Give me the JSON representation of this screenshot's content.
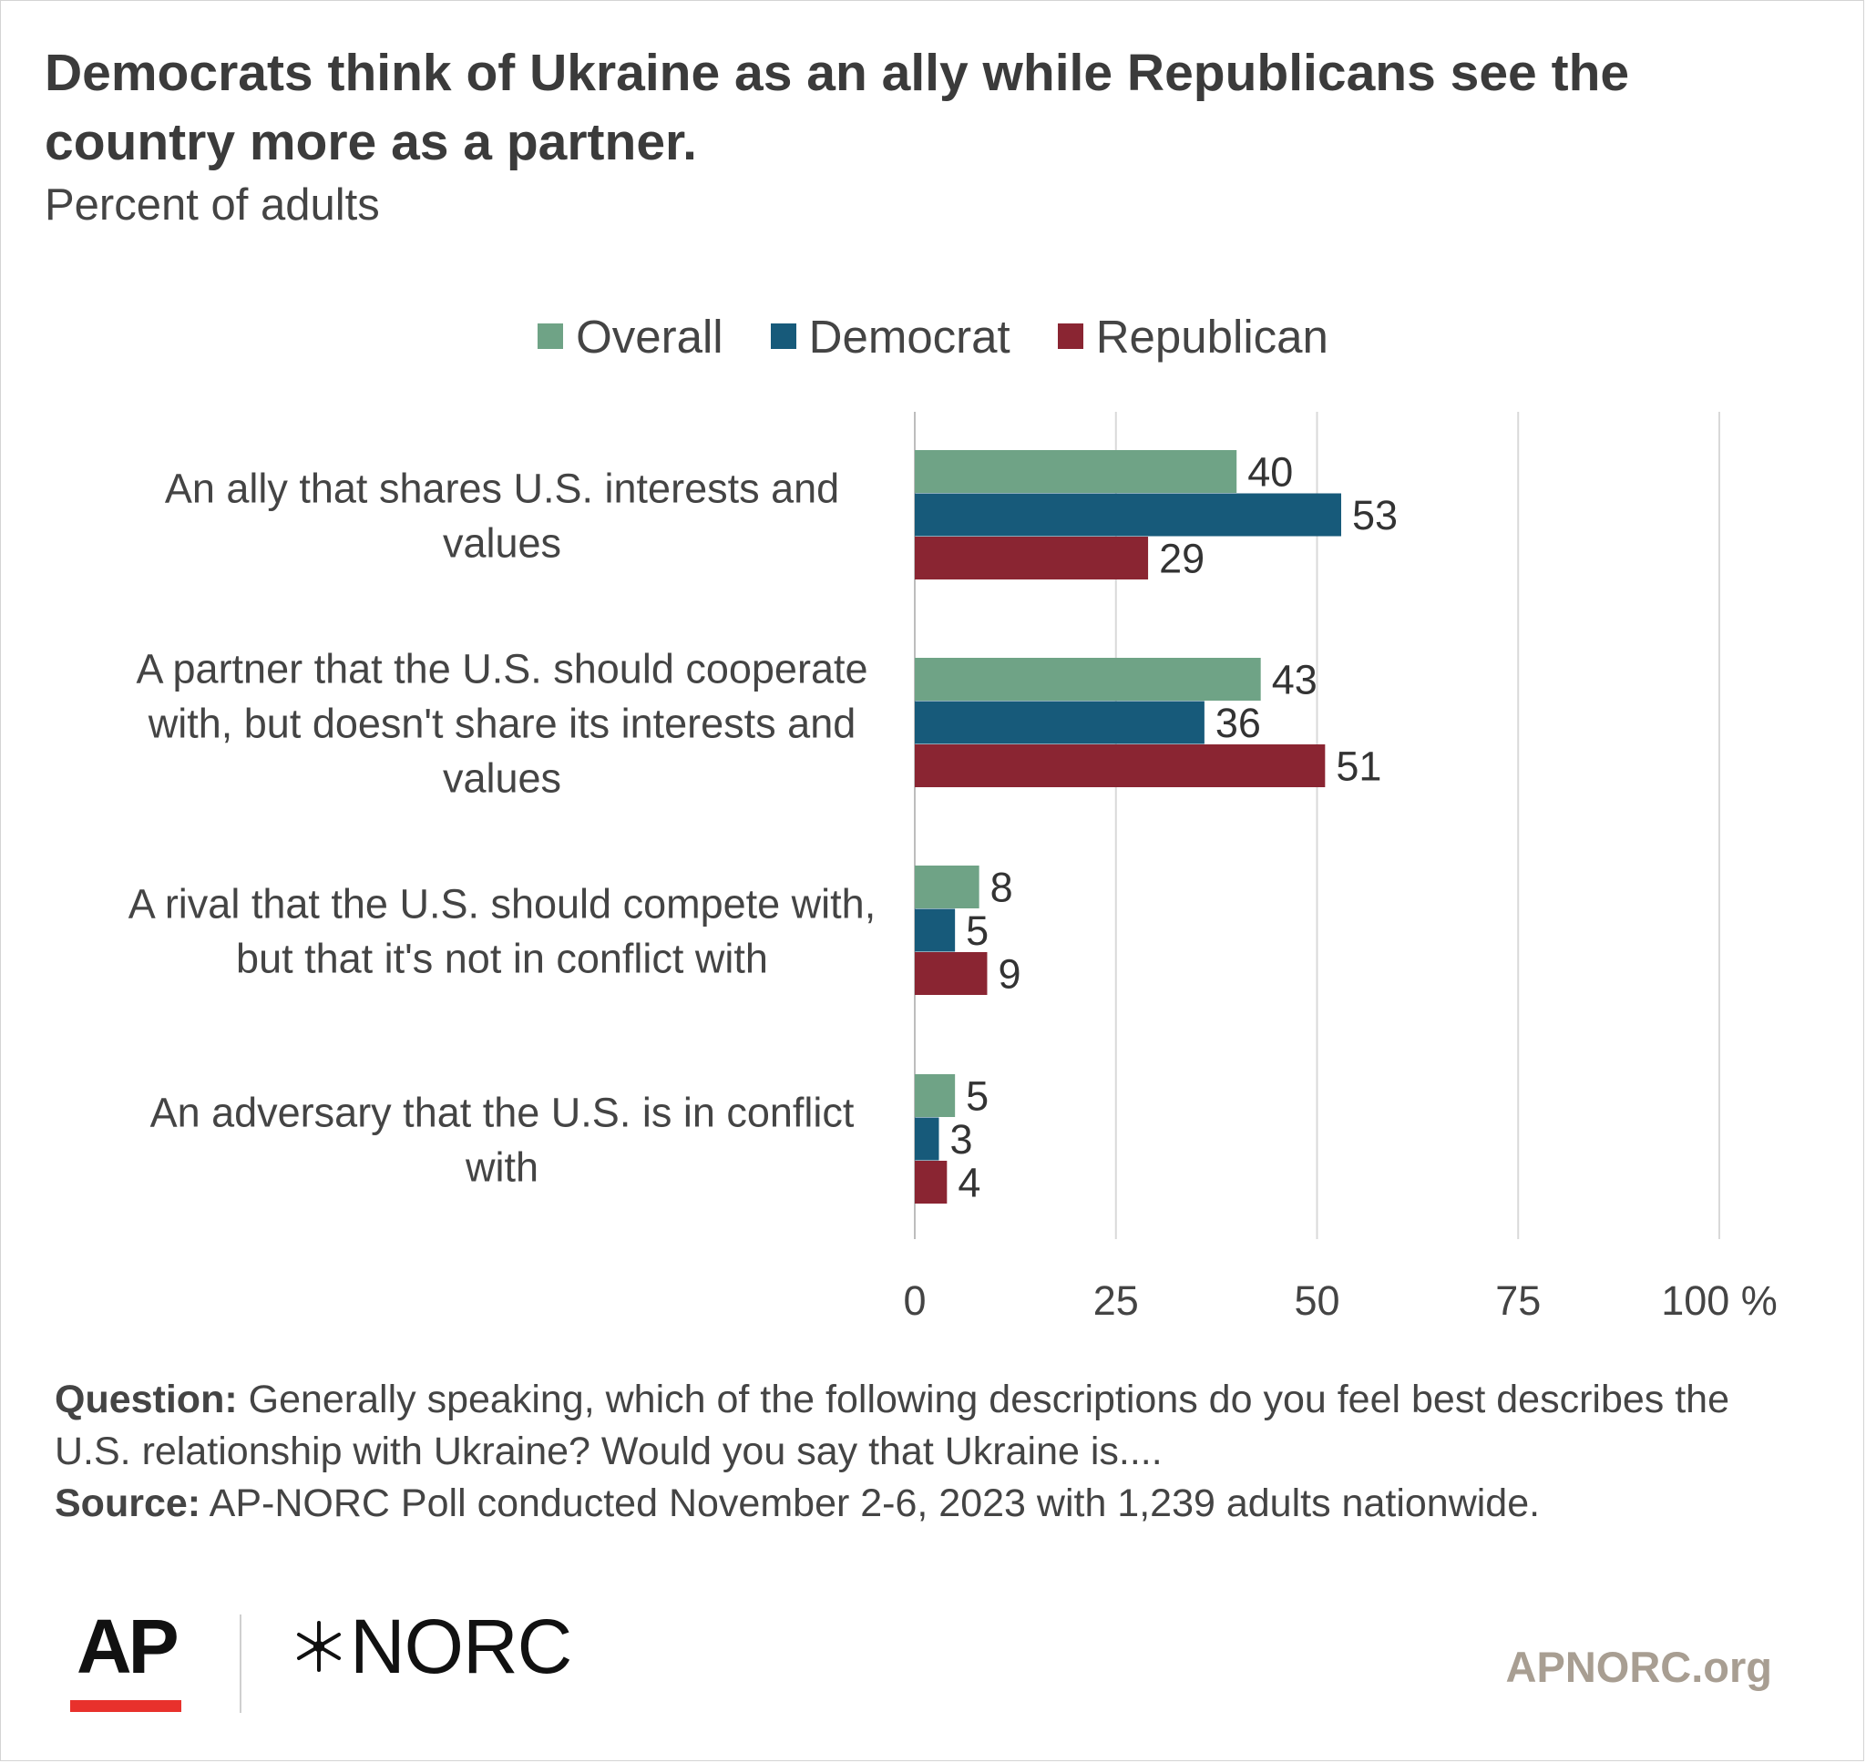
{
  "title": "Democrats think of Ukraine as an ally while Republicans see the country more as a partner.",
  "subtitle": "Percent of adults",
  "colors": {
    "overall": "#6fa386",
    "democrat": "#175a7a",
    "republican": "#8a2532",
    "grid": "#d9d9d9"
  },
  "chart_data": {
    "type": "bar",
    "orientation": "horizontal",
    "categories": [
      [
        "An ally that shares U.S. interests and",
        "values"
      ],
      [
        "A partner that the U.S. should cooperate",
        "with, but doesn't share its interests and",
        "values"
      ],
      [
        "A rival that the U.S. should compete with,",
        "but that it's not in conflict with"
      ],
      [
        "An adversary that the U.S. is in conflict",
        "with"
      ]
    ],
    "series": [
      {
        "name": "Overall",
        "values": [
          40,
          43,
          8,
          5
        ]
      },
      {
        "name": "Democrat",
        "values": [
          53,
          36,
          5,
          3
        ]
      },
      {
        "name": "Republican",
        "values": [
          29,
          51,
          9,
          4
        ]
      }
    ],
    "xlim": [
      0,
      100
    ],
    "xticks": [
      0,
      25,
      50,
      75,
      100
    ],
    "xtick_labels": [
      "0",
      "25",
      "50",
      "75",
      "100 %"
    ],
    "grid": true,
    "legend": "top-center"
  },
  "notes": {
    "question_label": "Question:",
    "question_text": " Generally speaking, which of the following descriptions do you feel best describes the U.S. relationship with Ukraine? Would you say that Ukraine is....",
    "source_label": "Source:",
    "source_text": " AP-NORC Poll conducted November 2-6, 2023 with 1,239 adults nationwide."
  },
  "footer": {
    "logo_ap": "AP",
    "logo_norc": "NORC",
    "site": "APNORC.org"
  }
}
